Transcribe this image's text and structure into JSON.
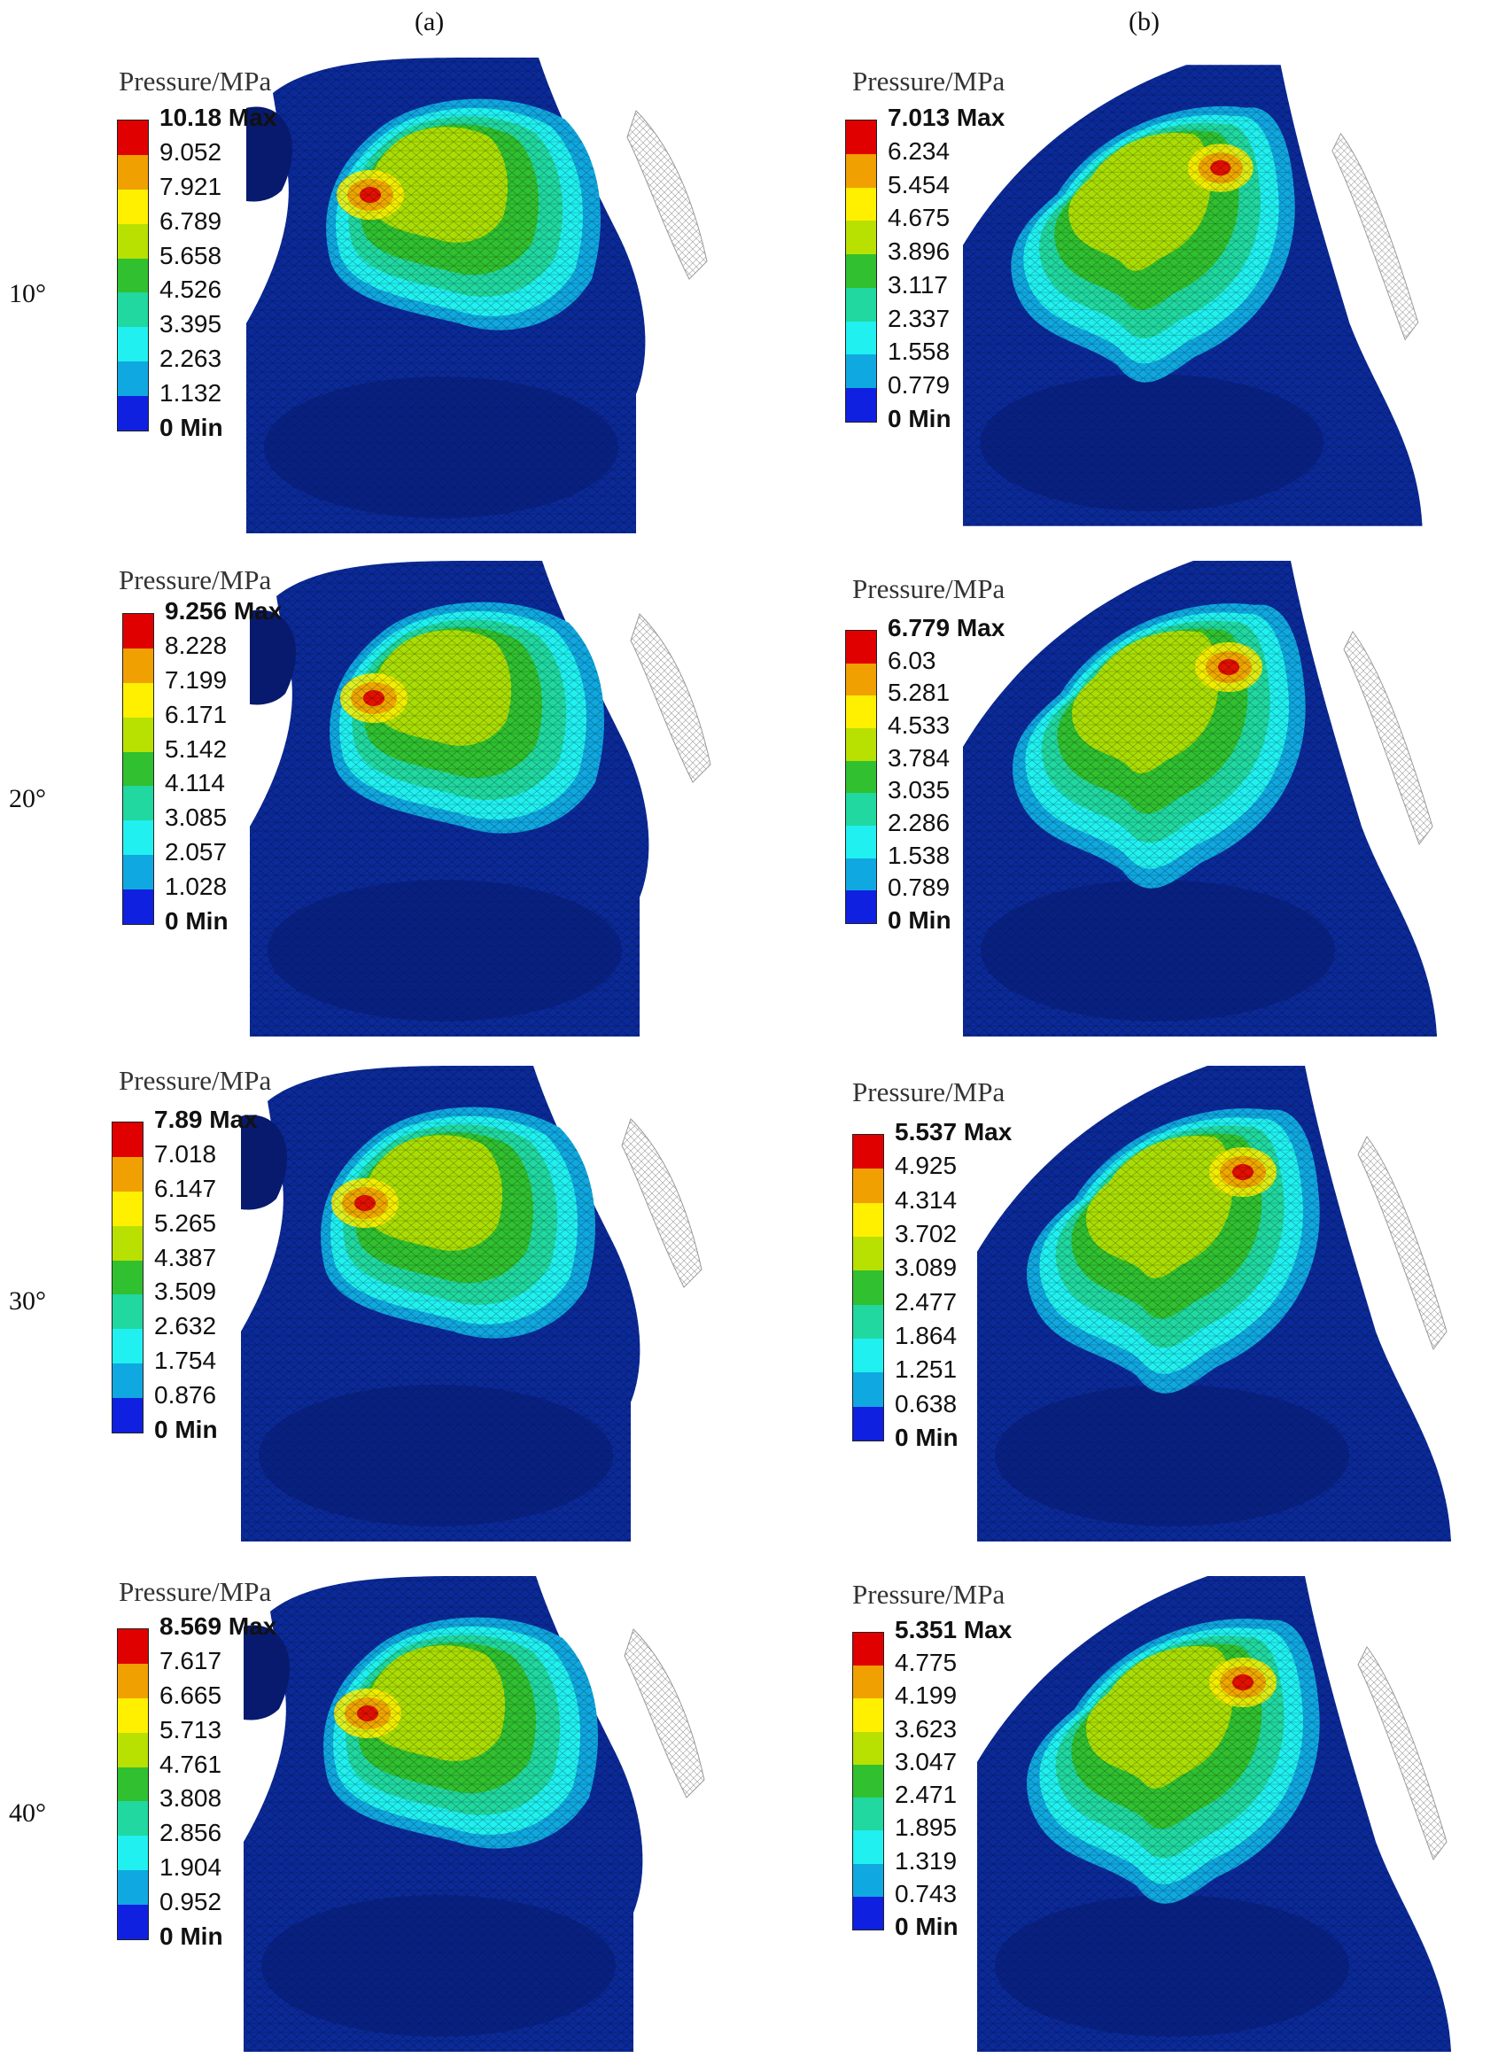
{
  "column_labels": [
    "(a)",
    "(b)"
  ],
  "row_labels": [
    "10°",
    "20°",
    "30°",
    "40°"
  ],
  "legend_title": "Pressure/MPa",
  "legend_colors": [
    "#e00000",
    "#f0a000",
    "#fff000",
    "#b8e000",
    "#30c030",
    "#20d8a0",
    "#20f0f0",
    "#10a8e0",
    "#1020e0"
  ],
  "mesh_colors": {
    "background_blue": "#0b2a9a",
    "dark_blue": "#081a6e",
    "mesh_line": "#000000",
    "bone_mesh": "#9a9a9a"
  },
  "panels": [
    {
      "col": 0,
      "row": 0,
      "legend": [
        "10.18 Max",
        "9.052",
        "7.921",
        "6.789",
        "5.658",
        "4.526",
        "3.395",
        "2.263",
        "1.132",
        "0 Min"
      ]
    },
    {
      "col": 1,
      "row": 0,
      "legend": [
        "7.013 Max",
        "6.234",
        "5.454",
        "4.675",
        "3.896",
        "3.117",
        "2.337",
        "1.558",
        "0.779",
        "0 Min"
      ]
    },
    {
      "col": 0,
      "row": 1,
      "legend": [
        "9.256 Max",
        "8.228",
        "7.199",
        "6.171",
        "5.142",
        "4.114",
        "3.085",
        "2.057",
        "1.028",
        "0 Min"
      ]
    },
    {
      "col": 1,
      "row": 1,
      "legend": [
        "6.779 Max",
        "6.03",
        "5.281",
        "4.533",
        "3.784",
        "3.035",
        "2.286",
        "1.538",
        "0.789",
        "0 Min"
      ]
    },
    {
      "col": 0,
      "row": 2,
      "legend": [
        "7.89 Max",
        "7.018",
        "6.147",
        "5.265",
        "4.387",
        "3.509",
        "2.632",
        "1.754",
        "0.876",
        "0 Min"
      ]
    },
    {
      "col": 1,
      "row": 2,
      "legend": [
        "5.537 Max",
        "4.925",
        "4.314",
        "3.702",
        "3.089",
        "2.477",
        "1.864",
        "1.251",
        "0.638",
        "0 Min"
      ]
    },
    {
      "col": 0,
      "row": 3,
      "legend": [
        "8.569 Max",
        "7.617",
        "6.665",
        "5.713",
        "4.761",
        "3.808",
        "2.856",
        "1.904",
        "0.952",
        "0 Min"
      ]
    },
    {
      "col": 1,
      "row": 3,
      "legend": [
        "5.351 Max",
        "4.775",
        "4.199",
        "3.623",
        "3.047",
        "2.471",
        "1.895",
        "1.319",
        "0.743",
        "0 Min"
      ]
    }
  ]
}
